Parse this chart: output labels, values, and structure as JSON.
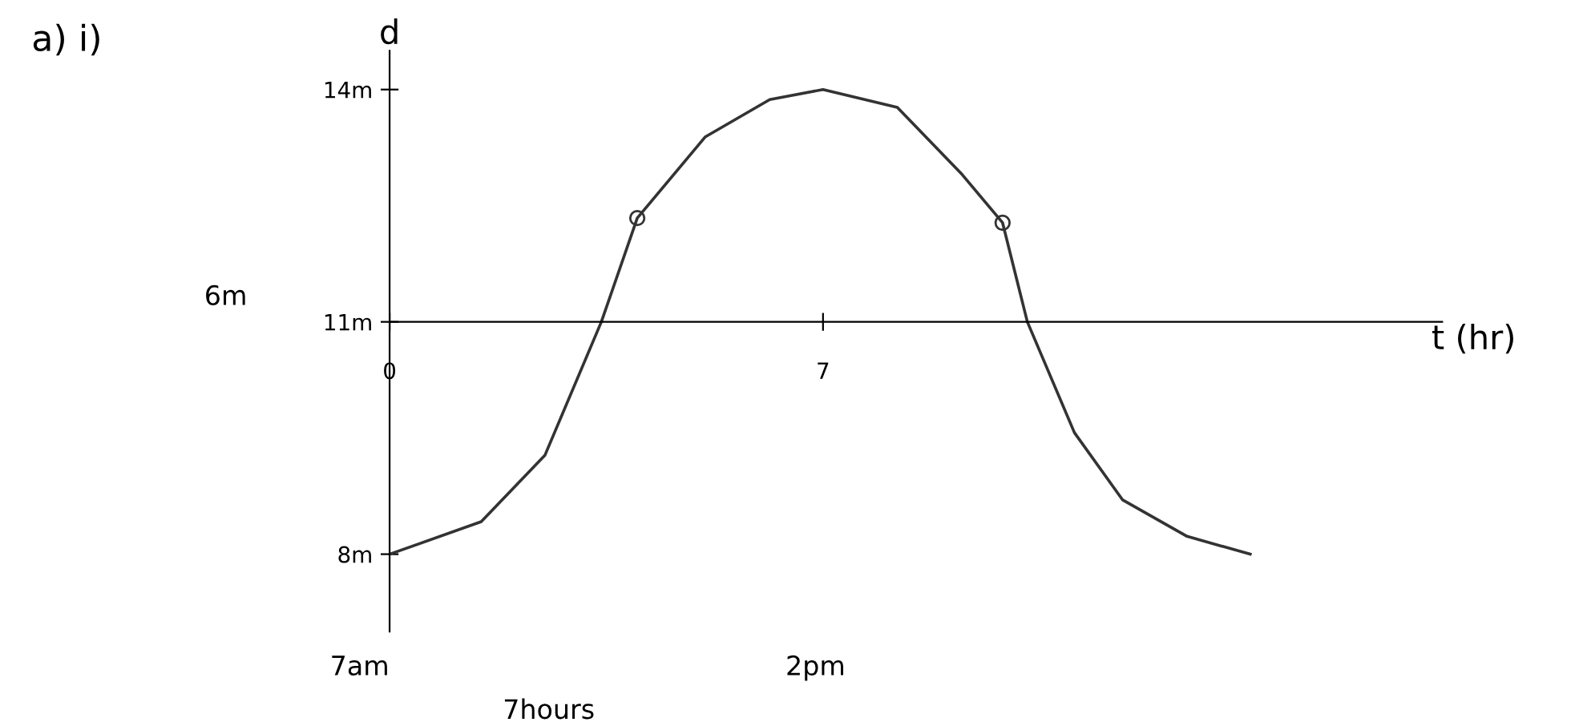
{
  "chart_data": {
    "type": "line",
    "title": "a) i)",
    "xlabel": "t (hr)",
    "ylabel": "d",
    "xlim": [
      0,
      17
    ],
    "ylim": [
      7,
      14.5
    ],
    "xticks": [
      {
        "value": 0,
        "label": "0"
      },
      {
        "value": 7,
        "label": "7"
      }
    ],
    "yticks": [
      {
        "value": 8,
        "label": "8m"
      },
      {
        "value": 11,
        "label": "11m"
      },
      {
        "value": 14,
        "label": "14m"
      }
    ],
    "series": [
      {
        "color": "#333333",
        "marker": "none",
        "x": [
          0,
          1.48,
          2.51,
          3.42,
          4.0,
          5.1,
          6.14,
          7.0,
          8.2,
          9.25,
          9.9,
          10.3,
          11.06,
          11.84,
          12.88,
          13.9
        ],
        "values": [
          8,
          8.42,
          9.28,
          11,
          12.34,
          13.39,
          13.87,
          14,
          13.77,
          12.9,
          12.28,
          11,
          9.57,
          8.7,
          8.23,
          8
        ]
      },
      {
        "type": "scatter",
        "color": "#333333",
        "marker": "circle",
        "x": [
          4.0,
          9.9
        ],
        "values": [
          12.34,
          12.28
        ]
      }
    ],
    "annotations": [
      "6m",
      "7am",
      "2pm",
      "7hours"
    ],
    "grid": false,
    "legend": false
  }
}
